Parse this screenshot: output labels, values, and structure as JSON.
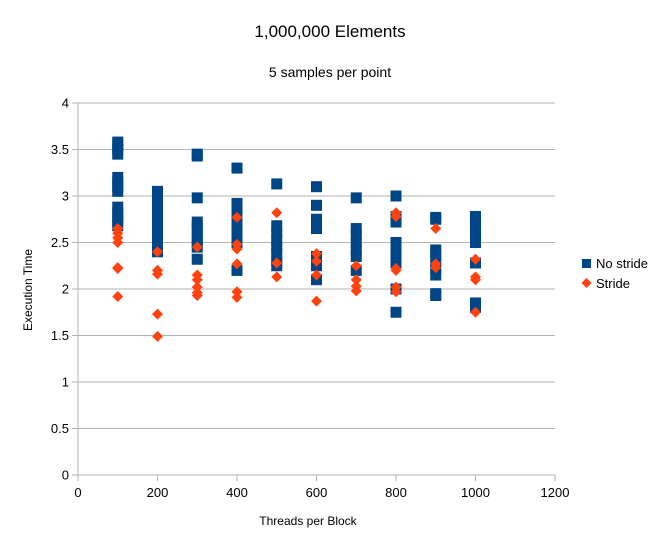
{
  "chart_data": {
    "type": "scatter",
    "title": "1,000,000 Elements",
    "subtitle": "5 samples per point",
    "xlabel": "Threads per Block",
    "ylabel": "Execution Time",
    "xlim": [
      0,
      1200
    ],
    "ylim": [
      0,
      4
    ],
    "xticks": [
      0,
      200,
      400,
      600,
      800,
      1000,
      1200
    ],
    "yticks": [
      0,
      0.5,
      1,
      1.5,
      2,
      2.5,
      3,
      3.5,
      4
    ],
    "xtick_labels": [
      "0",
      "200",
      "400",
      "600",
      "800",
      "1000",
      "1200"
    ],
    "ytick_labels": [
      "0",
      "0.5",
      "1",
      "1.5",
      "2",
      "2.5",
      "3",
      "3.5",
      "4"
    ],
    "grid": "horizontal",
    "legend_position": "right",
    "series": [
      {
        "name": "No stride",
        "marker": "square",
        "color": "#004586",
        "points": [
          [
            100,
            3.58
          ],
          [
            100,
            3.55
          ],
          [
            100,
            3.5
          ],
          [
            100,
            3.45
          ],
          [
            100,
            3.2
          ],
          [
            100,
            3.15
          ],
          [
            100,
            3.1
          ],
          [
            100,
            3.05
          ],
          [
            100,
            2.88
          ],
          [
            100,
            2.82
          ],
          [
            100,
            2.78
          ],
          [
            100,
            2.73
          ],
          [
            100,
            2.68
          ],
          [
            200,
            3.05
          ],
          [
            200,
            2.95
          ],
          [
            200,
            2.88
          ],
          [
            200,
            2.8
          ],
          [
            200,
            2.72
          ],
          [
            200,
            2.65
          ],
          [
            200,
            2.58
          ],
          [
            200,
            2.52
          ],
          [
            200,
            2.45
          ],
          [
            200,
            2.4
          ],
          [
            300,
            3.45
          ],
          [
            300,
            3.43
          ],
          [
            300,
            2.98
          ],
          [
            300,
            2.72
          ],
          [
            300,
            2.68
          ],
          [
            300,
            2.62
          ],
          [
            300,
            2.55
          ],
          [
            300,
            2.5
          ],
          [
            300,
            2.45
          ],
          [
            300,
            2.32
          ],
          [
            400,
            3.3
          ],
          [
            400,
            2.92
          ],
          [
            400,
            2.88
          ],
          [
            400,
            2.78
          ],
          [
            400,
            2.72
          ],
          [
            400,
            2.65
          ],
          [
            400,
            2.6
          ],
          [
            400,
            2.55
          ],
          [
            400,
            2.5
          ],
          [
            400,
            2.2
          ],
          [
            500,
            3.13
          ],
          [
            500,
            2.68
          ],
          [
            500,
            2.6
          ],
          [
            500,
            2.52
          ],
          [
            500,
            2.45
          ],
          [
            500,
            2.38
          ],
          [
            500,
            2.3
          ],
          [
            500,
            2.25
          ],
          [
            600,
            3.1
          ],
          [
            600,
            2.9
          ],
          [
            600,
            2.75
          ],
          [
            600,
            2.65
          ],
          [
            600,
            2.35
          ],
          [
            600,
            2.3
          ],
          [
            600,
            2.25
          ],
          [
            600,
            2.1
          ],
          [
            700,
            2.98
          ],
          [
            700,
            2.65
          ],
          [
            700,
            2.58
          ],
          [
            700,
            2.5
          ],
          [
            700,
            2.42
          ],
          [
            700,
            2.35
          ],
          [
            700,
            2.2
          ],
          [
            800,
            3.0
          ],
          [
            800,
            2.78
          ],
          [
            800,
            2.72
          ],
          [
            800,
            2.5
          ],
          [
            800,
            2.45
          ],
          [
            800,
            2.35
          ],
          [
            800,
            2.28
          ],
          [
            800,
            2.0
          ],
          [
            800,
            1.75
          ],
          [
            900,
            2.77
          ],
          [
            900,
            2.75
          ],
          [
            900,
            2.42
          ],
          [
            900,
            2.38
          ],
          [
            900,
            2.3
          ],
          [
            900,
            2.22
          ],
          [
            900,
            2.15
          ],
          [
            900,
            1.95
          ],
          [
            900,
            1.93
          ],
          [
            1000,
            2.78
          ],
          [
            1000,
            2.72
          ],
          [
            1000,
            2.68
          ],
          [
            1000,
            2.62
          ],
          [
            1000,
            2.55
          ],
          [
            1000,
            2.5
          ],
          [
            1000,
            2.28
          ],
          [
            1000,
            1.85
          ],
          [
            1000,
            1.8
          ]
        ]
      },
      {
        "name": "Stride",
        "marker": "diamond",
        "color": "#ff420e",
        "points": [
          [
            100,
            2.65
          ],
          [
            100,
            2.6
          ],
          [
            100,
            2.55
          ],
          [
            100,
            2.5
          ],
          [
            100,
            2.23
          ],
          [
            100,
            2.22
          ],
          [
            100,
            1.92
          ],
          [
            200,
            2.4
          ],
          [
            200,
            2.2
          ],
          [
            200,
            2.16
          ],
          [
            200,
            1.73
          ],
          [
            200,
            1.49
          ],
          [
            300,
            2.45
          ],
          [
            300,
            2.15
          ],
          [
            300,
            2.1
          ],
          [
            300,
            2.02
          ],
          [
            300,
            1.96
          ],
          [
            300,
            1.93
          ],
          [
            400,
            2.77
          ],
          [
            400,
            2.48
          ],
          [
            400,
            2.43
          ],
          [
            400,
            2.27
          ],
          [
            400,
            1.97
          ],
          [
            400,
            1.91
          ],
          [
            500,
            2.82
          ],
          [
            500,
            2.28
          ],
          [
            500,
            2.13
          ],
          [
            600,
            2.38
          ],
          [
            600,
            2.3
          ],
          [
            600,
            2.15
          ],
          [
            600,
            1.87
          ],
          [
            700,
            2.25
          ],
          [
            700,
            2.1
          ],
          [
            700,
            2.03
          ],
          [
            700,
            1.98
          ],
          [
            800,
            2.82
          ],
          [
            800,
            2.78
          ],
          [
            800,
            2.22
          ],
          [
            800,
            2.2
          ],
          [
            800,
            2.02
          ],
          [
            800,
            1.97
          ],
          [
            900,
            2.65
          ],
          [
            900,
            2.27
          ],
          [
            900,
            2.23
          ],
          [
            1000,
            2.32
          ],
          [
            1000,
            2.13
          ],
          [
            1000,
            2.1
          ],
          [
            1000,
            1.75
          ]
        ]
      }
    ]
  }
}
